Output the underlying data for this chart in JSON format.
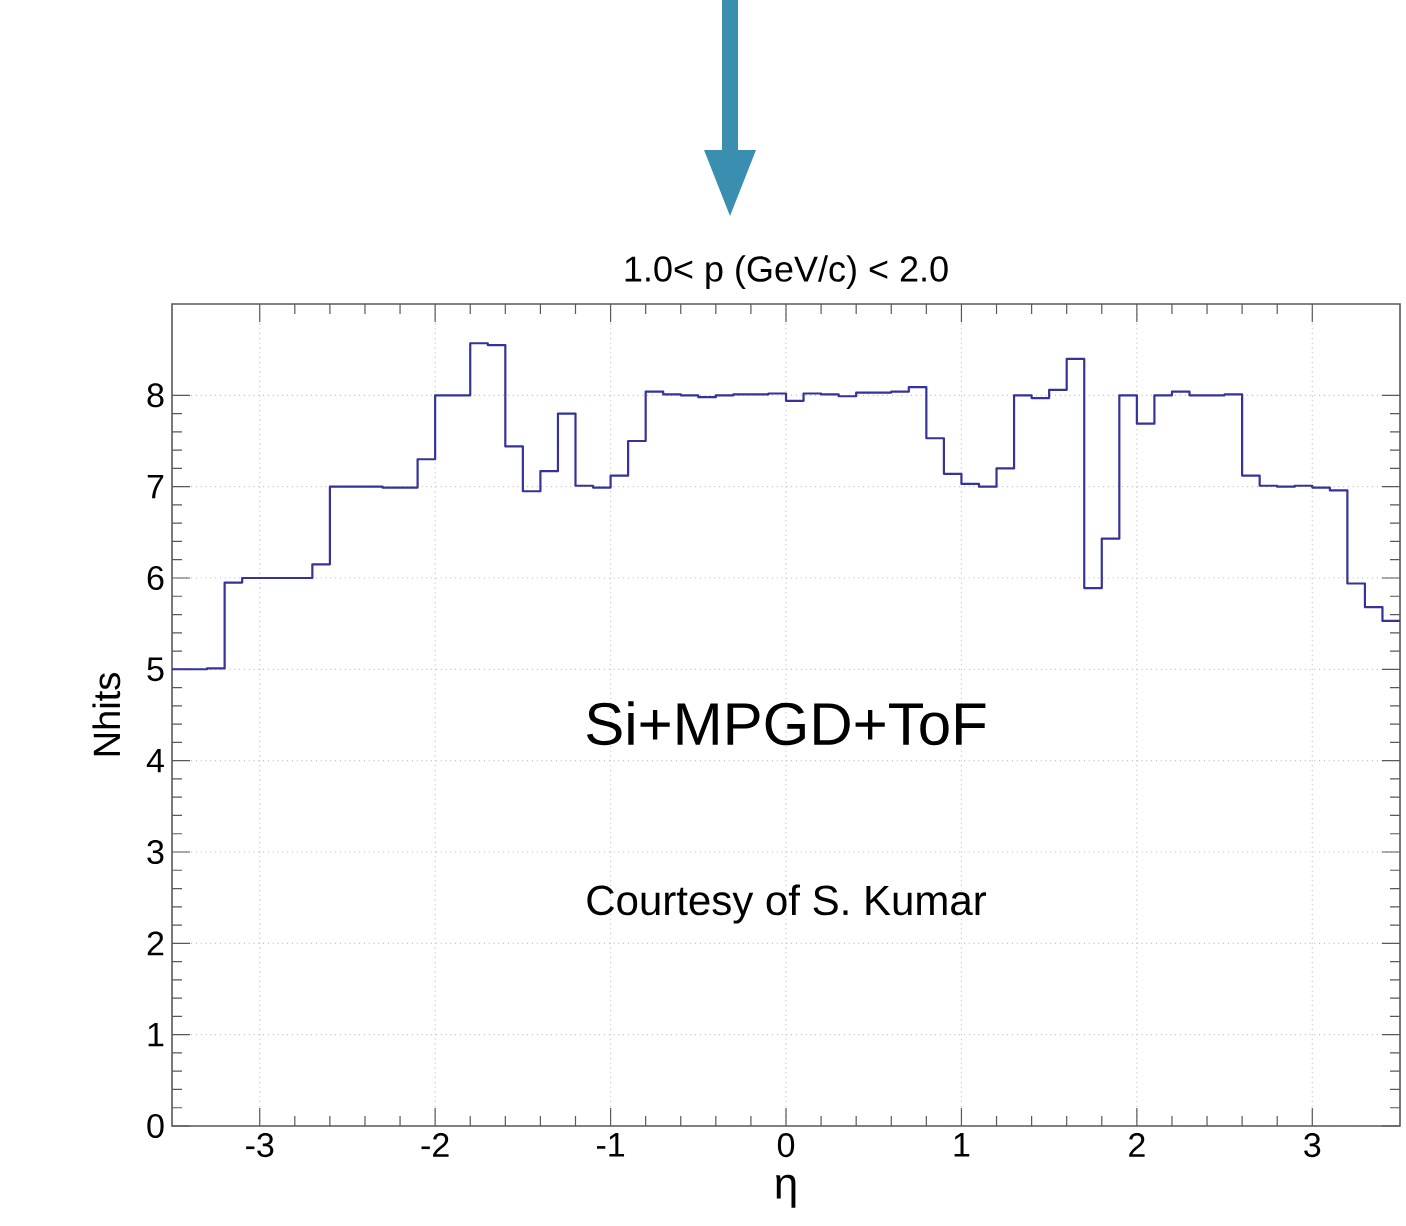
{
  "chart_data": {
    "type": "histogram",
    "title": "1.0< p (GeV/c) < 2.0",
    "xlabel": "η",
    "ylabel": "Nhits",
    "annotations": [
      "Si+MPGD+ToF",
      "Courtesy of S. Kumar"
    ],
    "bins": [
      -3.5,
      -3.4,
      -3.3,
      -3.2,
      -3.1,
      -3.0,
      -2.9,
      -2.8,
      -2.7,
      -2.6,
      -2.5,
      -2.4,
      -2.3,
      -2.2,
      -2.1,
      -2.0,
      -1.9,
      -1.8,
      -1.7,
      -1.6,
      -1.5,
      -1.4,
      -1.3,
      -1.2,
      -1.1,
      -1.0,
      -0.9,
      -0.8,
      -0.7,
      -0.6,
      -0.5,
      -0.4,
      -0.3,
      -0.2,
      -0.1,
      0.0,
      0.1,
      0.2,
      0.3,
      0.4,
      0.5,
      0.6,
      0.7,
      0.8,
      0.9,
      1.0,
      1.1,
      1.2,
      1.3,
      1.4,
      1.5,
      1.6,
      1.7,
      1.8,
      1.9,
      2.0,
      2.1,
      2.2,
      2.3,
      2.4,
      2.5,
      2.6,
      2.7,
      2.8,
      2.9,
      3.0,
      3.1,
      3.2,
      3.3,
      3.4,
      3.5
    ],
    "values": [
      5.0,
      5.0,
      5.01,
      5.95,
      6.0,
      6.0,
      6.0,
      6.0,
      6.15,
      7.0,
      7.0,
      7.0,
      6.99,
      6.99,
      7.3,
      8.0,
      8.0,
      8.57,
      8.55,
      7.44,
      6.95,
      7.17,
      7.8,
      7.01,
      6.99,
      7.12,
      7.5,
      8.04,
      8.01,
      8.0,
      7.98,
      8.0,
      8.01,
      8.01,
      8.02,
      7.94,
      8.02,
      8.01,
      7.99,
      8.03,
      8.03,
      8.04,
      8.09,
      7.53,
      7.14,
      7.03,
      7.0,
      7.2,
      8.0,
      7.97,
      8.06,
      8.4,
      5.89,
      6.43,
      8.0,
      7.69,
      8.0,
      8.04,
      8.0,
      8.0,
      8.01,
      7.12,
      7.01,
      7.0,
      7.01,
      6.99,
      6.96,
      5.94,
      5.68,
      5.53
    ],
    "color": "#333399",
    "xlim": [
      -3.5,
      3.5
    ],
    "ylim": [
      0,
      9
    ],
    "xticks": [
      -3,
      -2,
      -1,
      0,
      1,
      2,
      3
    ],
    "yticks": [
      0,
      1,
      2,
      3,
      4,
      5,
      6,
      7,
      8
    ],
    "grid": true
  }
}
